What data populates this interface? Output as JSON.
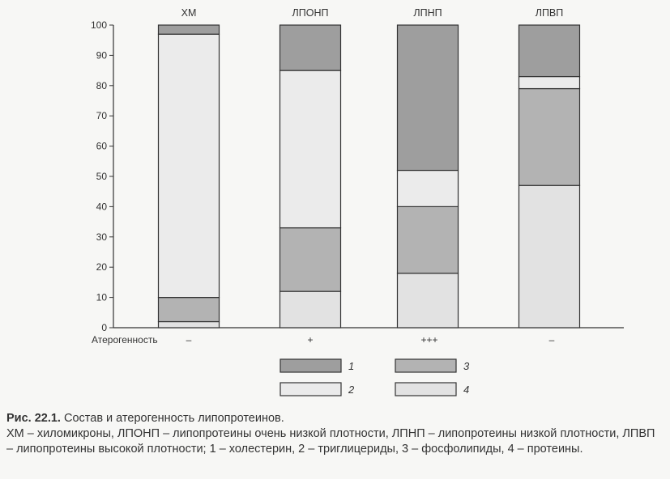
{
  "chart_data": {
    "type": "bar",
    "stacked": true,
    "categories": [
      "ХМ",
      "ЛПОНП",
      "ЛПНП",
      "ЛПВП"
    ],
    "series": [
      {
        "name": "4",
        "values": [
          2,
          12,
          18,
          47
        ],
        "color": "#e2e2e2"
      },
      {
        "name": "3",
        "values": [
          8,
          21,
          22,
          32
        ],
        "color": "#b3b3b3"
      },
      {
        "name": "2",
        "values": [
          87,
          52,
          12,
          4
        ],
        "color": "#ebebeb"
      },
      {
        "name": "1",
        "values": [
          3,
          15,
          48,
          17
        ],
        "color": "#9e9e9e"
      }
    ],
    "ylim": [
      0,
      100
    ],
    "yticks": [
      0,
      10,
      20,
      30,
      40,
      50,
      60,
      70,
      80,
      90,
      100
    ],
    "row_label": "Атерогенность",
    "row_values": [
      "–",
      "+",
      "+++",
      "–"
    ],
    "legend": [
      {
        "label": "1",
        "color": "#9e9e9e"
      },
      {
        "label": "3",
        "color": "#b3b3b3"
      },
      {
        "label": "2",
        "color": "#ebebeb"
      },
      {
        "label": "4",
        "color": "#e2e2e2"
      }
    ],
    "grid": false
  },
  "caption": {
    "label": "Рис. 22.1.",
    "title": " Состав и атерогенность липопротеинов.",
    "body": "ХМ – хиломикроны, ЛПОНП – липопротеины очень низкой плотности, ЛПНП – липопротеины низкой плотности, ЛПВП – липопротеины высокой плотности; 1 – холестерин, 2 – триглицериды, 3 – фосфолипиды, 4 – протеины."
  }
}
